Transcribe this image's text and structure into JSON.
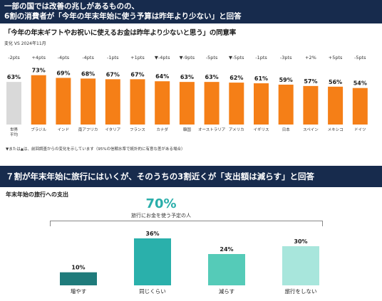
{
  "header1": {
    "line1": "一部の国では改善の兆しがあるものの、",
    "line2": "6割の消費者が「今年の年末年始に使う予算は昨年より少ない」と回答"
  },
  "header2": {
    "text": "７割が年末年始に旅行にはいくが、そのうちの3割近くが「支出額は減らす」と回答"
  },
  "chart_data": [
    {
      "type": "bar",
      "title": "「今年の年末ギフトやお祝いに使えるお金は昨年より少ないと思う」の同意率",
      "subtitle": "変化  VS 2024年11月",
      "footnote": "▼または▲は、前回調査からの変化を示しています（95%の信頼水準で統計的に有意な差がある場合）",
      "categories": [
        "世界\n平均",
        "ブラジル",
        "インド",
        "南アフリカ",
        "イタリア",
        "フランス",
        "カナダ",
        "韓国",
        "オーストラリア",
        "アメリカ",
        "イギリス",
        "日本",
        "スペイン",
        "メキシコ",
        "ドイツ"
      ],
      "values": [
        63,
        73,
        69,
        68,
        67,
        67,
        64,
        63,
        63,
        62,
        61,
        59,
        57,
        56,
        54
      ],
      "value_labels": [
        "63%",
        "73%",
        "69%",
        "68%",
        "67%",
        "67%",
        "64%",
        "63%",
        "63%",
        "62%",
        "61%",
        "59%",
        "57%",
        "56%",
        "54%"
      ],
      "changes": [
        "-2pts",
        "+4pts",
        "-4pts",
        "-4pts",
        "-1pts",
        "+1pts",
        "▼-4pts",
        "▼-9pts",
        "-5pts",
        "▼-5pts",
        "-1pts",
        "-3pts",
        "+2%",
        "+5pts",
        "-5pts"
      ],
      "colors": {
        "average": "#d9d9d9",
        "country": "#f57f17"
      },
      "ylim": [
        0,
        80
      ]
    },
    {
      "type": "bar",
      "title": "年末年始の旅行への支出",
      "headline_value": "70%",
      "headline_label": "旅行にお金を使う予定の人",
      "categories": [
        "増やす",
        "同じくらい",
        "減らす",
        "旅行をしない"
      ],
      "values": [
        10,
        36,
        24,
        30
      ],
      "value_labels": [
        "10%",
        "36%",
        "24%",
        "30%"
      ],
      "colors": [
        "#1f7b7b",
        "#2ab0ab",
        "#55cbb8",
        "#a8e6dc"
      ],
      "ylim": [
        0,
        36
      ]
    }
  ]
}
